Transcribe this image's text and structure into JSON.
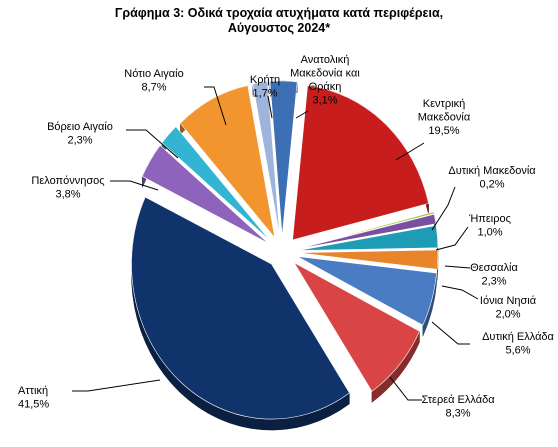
{
  "chart_data": {
    "type": "pie",
    "title": [
      "Γράφημα 3: Οδικά τροχαία ατυχήματα κατά περιφέρεια,",
      "Αύγουστος 2024*"
    ],
    "labels_outside": true,
    "legend": "none",
    "slices": [
      {
        "name": [
          "Ανατολική",
          "Μακεδονία και",
          "Θράκη"
        ],
        "value": 3.1,
        "label": "3,1%",
        "color": "#3d6fb4"
      },
      {
        "name": [
          "Κεντρική",
          "Μακεδονία"
        ],
        "value": 19.5,
        "label": "19,5%",
        "color": "#c81d1d"
      },
      {
        "name": [
          "Δυτική Μακεδονία"
        ],
        "value": 0.2,
        "label": "0,2%",
        "color": "#a6c24a"
      },
      {
        "name": [
          "Ήπειρος"
        ],
        "value": 1.0,
        "label": "1,0%",
        "color": "#7a4fa0"
      },
      {
        "name": [
          "Θεσσαλία"
        ],
        "value": 2.3,
        "label": "2,3%",
        "color": "#1e9bb5"
      },
      {
        "name": [
          "Ιόνια Νησιά"
        ],
        "value": 2.0,
        "label": "2,0%",
        "color": "#e8852a"
      },
      {
        "name": [
          "Δυτική Ελλάδα"
        ],
        "value": 5.6,
        "label": "5,6%",
        "color": "#4a7cc4"
      },
      {
        "name": [
          "Στερεά Ελλάδα"
        ],
        "value": 8.3,
        "label": "8,3%",
        "color": "#d94545"
      },
      {
        "name": [
          "Αττική"
        ],
        "value": 41.5,
        "label": "41,5%",
        "color": "#10336b"
      },
      {
        "name": [
          "Πελοπόννησος"
        ],
        "value": 3.8,
        "label": "3,8%",
        "color": "#8e63bb"
      },
      {
        "name": [
          "Βόρειο Αιγαίο"
        ],
        "value": 2.3,
        "label": "2,3%",
        "color": "#33b4d2"
      },
      {
        "name": [
          "Νότιο Αιγαίο"
        ],
        "value": 8.7,
        "label": "8,7%",
        "color": "#f3952f"
      },
      {
        "name": [
          "Κρήτη"
        ],
        "value": 1.7,
        "label": "1,7%",
        "color": "#9fb4dc"
      }
    ]
  }
}
